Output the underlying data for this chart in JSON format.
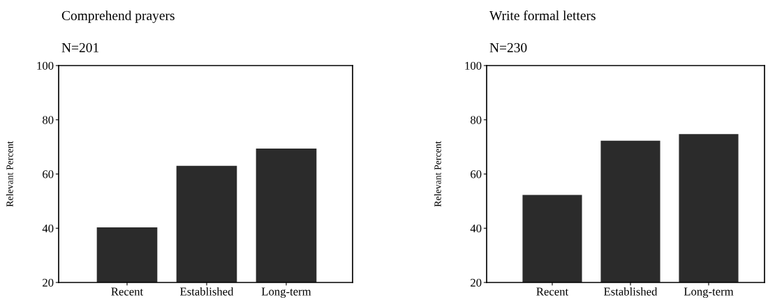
{
  "chart_data": [
    {
      "type": "bar",
      "title": "Comprehend prayers",
      "subtitle": "N=201",
      "ylabel": "Relevant Percent",
      "categories": [
        "Recent",
        "Established",
        "Long-term"
      ],
      "values": [
        40.3,
        63,
        69.4
      ],
      "color": "#2b2b2b",
      "ylim": [
        20,
        100
      ],
      "yticks": [
        20,
        40,
        60,
        80,
        100
      ],
      "grid": false
    },
    {
      "type": "bar",
      "title": "Write formal letters",
      "subtitle": "N=230",
      "ylabel": "Relevant Percent",
      "categories": [
        "Recent",
        "Established",
        "Long-term"
      ],
      "values": [
        52.3,
        72.3,
        74.7
      ],
      "color": "#2b2b2b",
      "ylim": [
        20,
        100
      ],
      "yticks": [
        20,
        40,
        60,
        80,
        100
      ],
      "grid": false
    }
  ]
}
